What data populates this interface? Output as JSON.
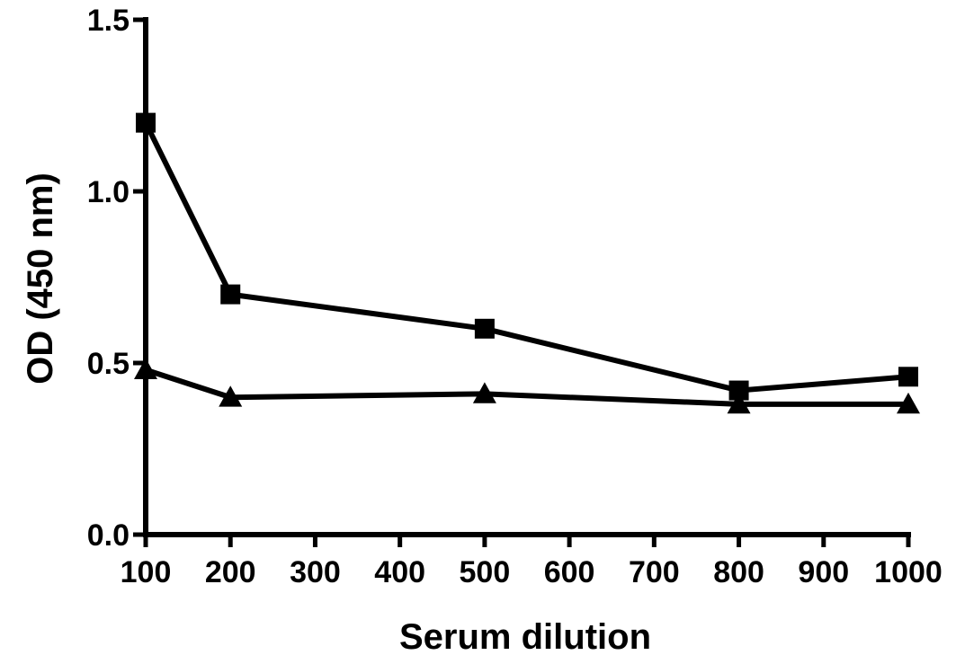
{
  "chart_data": {
    "type": "line",
    "title": "",
    "xlabel": "Serum dilution",
    "ylabel": "OD (450 nm)",
    "xlim": [
      100,
      1000
    ],
    "ylim": [
      0,
      1.5
    ],
    "xticks": [
      100,
      200,
      300,
      400,
      500,
      600,
      700,
      800,
      900,
      1000
    ],
    "xtick_labels": [
      "100",
      "200",
      "300",
      "400",
      "500",
      "600",
      "700",
      "800",
      "900",
      "1000"
    ],
    "yticks": [
      0,
      0.5,
      1.0,
      1.5
    ],
    "ytick_labels": [
      "0.0",
      "0.5",
      "1.0",
      "1.5"
    ],
    "grid": false,
    "legend": "none",
    "series": [
      {
        "marker": "square",
        "x": [
          100,
          200,
          500,
          800,
          1000
        ],
        "y": [
          1.2,
          0.7,
          0.6,
          0.42,
          0.46
        ]
      },
      {
        "marker": "triangle",
        "x": [
          100,
          200,
          500,
          800,
          1000
        ],
        "y": [
          0.48,
          0.4,
          0.41,
          0.38,
          0.38
        ]
      }
    ]
  }
}
